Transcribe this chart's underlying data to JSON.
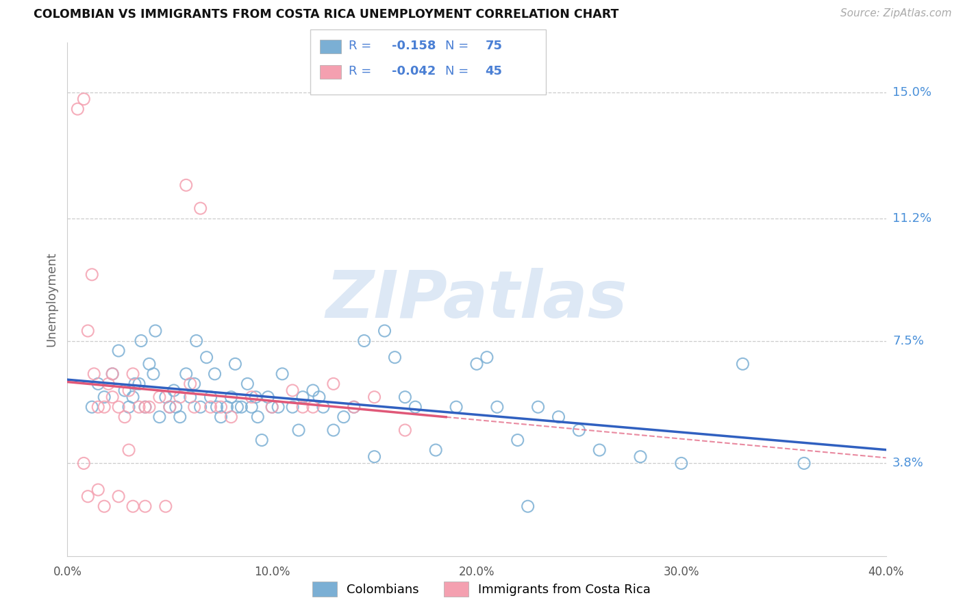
{
  "title": "COLOMBIAN VS IMMIGRANTS FROM COSTA RICA UNEMPLOYMENT CORRELATION CHART",
  "source": "Source: ZipAtlas.com",
  "ylabel": "Unemployment",
  "ytick_labels": [
    "3.8%",
    "7.5%",
    "11.2%",
    "15.0%"
  ],
  "ytick_values": [
    3.8,
    7.5,
    11.2,
    15.0
  ],
  "xtick_labels": [
    "0.0%",
    "10.0%",
    "20.0%",
    "30.0%",
    "40.0%"
  ],
  "xtick_values": [
    0,
    10,
    20,
    30,
    40
  ],
  "xmin": 0.0,
  "xmax": 40.0,
  "ymin": 1.0,
  "ymax": 16.5,
  "blue_label": "Colombians",
  "pink_label": "Immigrants from Costa Rica",
  "blue_R": "-0.158",
  "blue_N": "75",
  "pink_R": "-0.042",
  "pink_N": "45",
  "blue_dot_color": "#7bafd4",
  "pink_dot_color": "#f4a0b0",
  "blue_line_color": "#3060c0",
  "pink_line_color": "#e05878",
  "legend_text_color": "#4a7fd4",
  "right_label_color": "#4a90d9",
  "watermark_text": "ZIPatlas",
  "watermark_color": "#dde8f5",
  "blue_points_x": [
    1.2,
    1.5,
    1.8,
    2.2,
    2.5,
    2.8,
    3.0,
    3.2,
    3.5,
    3.8,
    4.0,
    4.2,
    4.5,
    4.8,
    5.0,
    5.2,
    5.5,
    5.8,
    6.0,
    6.2,
    6.5,
    6.8,
    7.0,
    7.2,
    7.5,
    7.8,
    8.0,
    8.2,
    8.5,
    8.8,
    9.0,
    9.2,
    9.5,
    9.8,
    10.0,
    10.5,
    11.0,
    11.5,
    12.0,
    12.5,
    13.0,
    13.5,
    14.0,
    14.5,
    15.0,
    16.0,
    17.0,
    18.0,
    19.0,
    20.0,
    21.0,
    22.0,
    23.0,
    24.0,
    25.0,
    26.0,
    28.0,
    30.0,
    33.0,
    36.0,
    3.3,
    3.6,
    4.3,
    5.3,
    6.3,
    7.3,
    8.3,
    9.3,
    10.3,
    11.3,
    12.3,
    15.5,
    16.5,
    20.5,
    22.5
  ],
  "blue_points_y": [
    5.5,
    6.2,
    5.8,
    6.5,
    7.2,
    6.0,
    5.5,
    5.8,
    6.2,
    5.5,
    6.8,
    6.5,
    5.2,
    5.8,
    5.5,
    6.0,
    5.2,
    6.5,
    5.8,
    6.2,
    5.5,
    7.0,
    5.8,
    6.5,
    5.2,
    5.5,
    5.8,
    6.8,
    5.5,
    6.2,
    5.5,
    5.8,
    4.5,
    5.8,
    5.5,
    6.5,
    5.5,
    5.8,
    6.0,
    5.5,
    4.8,
    5.2,
    5.5,
    7.5,
    4.0,
    7.0,
    5.5,
    4.2,
    5.5,
    6.8,
    5.5,
    4.5,
    5.5,
    5.2,
    4.8,
    4.2,
    4.0,
    3.8,
    6.8,
    3.8,
    6.2,
    7.5,
    7.8,
    5.5,
    7.5,
    5.5,
    5.5,
    5.2,
    5.5,
    4.8,
    5.8,
    7.8,
    5.8,
    7.0,
    2.5
  ],
  "pink_points_x": [
    0.5,
    0.8,
    1.0,
    1.2,
    1.3,
    1.5,
    1.8,
    2.0,
    2.2,
    2.5,
    2.8,
    3.0,
    3.2,
    3.5,
    3.8,
    4.0,
    4.5,
    5.0,
    5.5,
    6.0,
    6.5,
    7.0,
    8.0,
    9.0,
    10.0,
    11.0,
    12.0,
    13.0,
    14.0,
    15.0,
    1.0,
    1.8,
    2.5,
    3.0,
    3.8,
    4.8,
    6.2,
    7.5,
    11.5,
    16.5,
    0.8,
    1.5,
    2.2,
    3.2,
    5.8
  ],
  "pink_points_y": [
    14.5,
    14.8,
    7.8,
    9.5,
    6.5,
    5.5,
    5.5,
    6.2,
    5.8,
    5.5,
    5.2,
    6.0,
    6.5,
    5.5,
    5.5,
    5.5,
    5.8,
    5.5,
    5.8,
    6.2,
    11.5,
    5.5,
    5.2,
    5.8,
    5.5,
    6.0,
    5.5,
    6.2,
    5.5,
    5.8,
    2.8,
    2.5,
    2.8,
    4.2,
    2.5,
    2.5,
    5.5,
    5.5,
    5.5,
    4.8,
    3.8,
    3.0,
    6.5,
    2.5,
    12.2
  ]
}
